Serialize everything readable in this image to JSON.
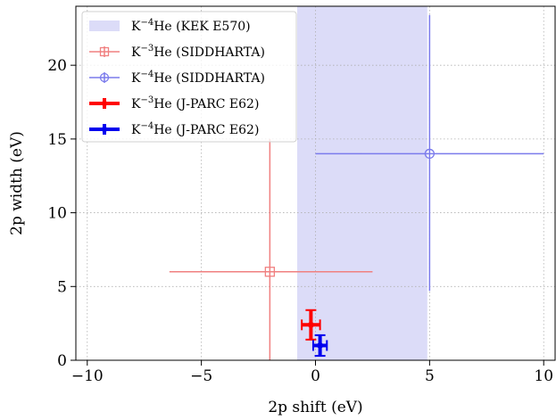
{
  "chart_data": {
    "type": "scatter",
    "xlabel": "2p shift (eV)",
    "ylabel": "2p width (eV)",
    "xlim": [
      -10.5,
      10.5
    ],
    "ylim": [
      0,
      24
    ],
    "xticks": [
      -10,
      -5,
      0,
      5,
      10
    ],
    "xtick_labels": [
      "−10",
      "−5",
      "0",
      "5",
      "10"
    ],
    "yticks": [
      0,
      5,
      10,
      15,
      20
    ],
    "ytick_labels": [
      "0",
      "5",
      "10",
      "15",
      "20"
    ],
    "grid": true,
    "legend_position": "top-left",
    "band": {
      "name": "K⁻⁴He (KEK E570)",
      "label_parts": [
        "K",
        "−4",
        "He (KEK E570)"
      ],
      "x_range": [
        -0.8,
        4.9
      ],
      "sub_band": [
        -0.8,
        2.0
      ],
      "color": "#dcdcf8"
    },
    "series": [
      {
        "name": "K⁻³He (SIDDHARTA)",
        "label_parts": [
          "K",
          "−3",
          "He (SIDDHARTA)"
        ],
        "marker": "square-open",
        "color": "#f08080",
        "thickness": "thin",
        "points": [
          {
            "x": -2.0,
            "y": 6.0,
            "xerr_low": -6.4,
            "xerr_high": 2.5,
            "yerr_low": 0.0,
            "yerr_high": 15.0
          }
        ]
      },
      {
        "name": "K⁻⁴He (SIDDHARTA)",
        "label_parts": [
          "K",
          "−4",
          "He (SIDDHARTA)"
        ],
        "marker": "circle-open",
        "color": "#7b7bec",
        "thickness": "thin",
        "points": [
          {
            "x": 5.0,
            "y": 14.0,
            "xerr_low": 0.0,
            "xerr_high": 10.0,
            "yerr_low": 4.7,
            "yerr_high": 23.4
          }
        ]
      },
      {
        "name": "K⁻³He (J-PARC E62)",
        "label_parts": [
          "K",
          "−3",
          "He (J-PARC E62)"
        ],
        "marker": "plus-thick",
        "color": "#ff0000",
        "thickness": "thick",
        "points": [
          {
            "x": -0.2,
            "y": 2.4,
            "xerr_low": -0.6,
            "xerr_high": 0.2,
            "yerr_low": 1.4,
            "yerr_high": 3.4
          }
        ]
      },
      {
        "name": "K⁻⁴He (J-PARC E62)",
        "label_parts": [
          "K",
          "−4",
          "He (J-PARC E62)"
        ],
        "marker": "plus-thick",
        "color": "#0000ee",
        "thickness": "thick",
        "points": [
          {
            "x": 0.2,
            "y": 1.0,
            "xerr_low": -0.1,
            "xerr_high": 0.5,
            "yerr_low": 0.3,
            "yerr_high": 1.7
          }
        ]
      }
    ]
  }
}
